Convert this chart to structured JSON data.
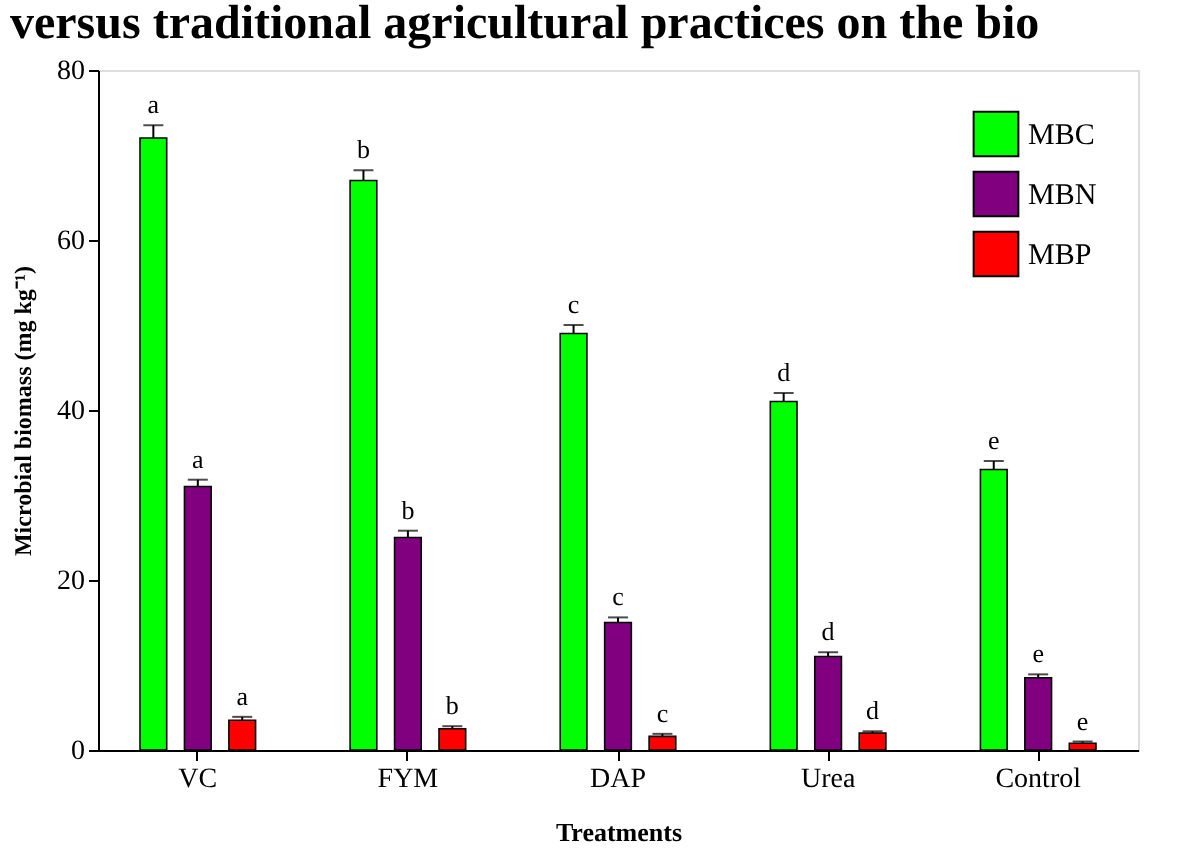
{
  "chart_data": {
    "type": "bar",
    "title": "versus traditional agricultural practices on the bio",
    "xlabel": "Treatments",
    "ylabel": "Microbial biomass (mg kg⁻¹)",
    "categories": [
      "VC",
      "FYM",
      "DAP",
      "Urea",
      "Control"
    ],
    "series": [
      {
        "name": "MBC",
        "color": "#00ff00",
        "values": [
          72,
          67,
          49,
          41,
          33
        ],
        "errors": [
          [
            72,
            73.5
          ],
          [
            67,
            68.2
          ],
          [
            49,
            50
          ],
          [
            41,
            42
          ],
          [
            33,
            34
          ]
        ],
        "value_labels": [
          "a",
          "b",
          "c",
          "d",
          "e"
        ]
      },
      {
        "name": "MBN",
        "color": "#800080",
        "values": [
          31,
          25,
          15,
          11,
          8.5
        ],
        "errors": [
          [
            31,
            31.8
          ],
          [
            25,
            25.8
          ],
          [
            15,
            15.6
          ],
          [
            11,
            11.5
          ],
          [
            8.5,
            8.9
          ]
        ],
        "value_labels": [
          "a",
          "b",
          "c",
          "d",
          "e"
        ]
      },
      {
        "name": "MBP",
        "color": "#ff0000",
        "values": [
          3.5,
          2.5,
          1.6,
          2.0,
          0.8
        ],
        "errors": [
          [
            3.5,
            3.9
          ],
          [
            2.5,
            2.8
          ],
          [
            1.6,
            1.9
          ],
          [
            2.0,
            2.2
          ],
          [
            0.8,
            1.0
          ]
        ],
        "value_labels": [
          "a",
          "b",
          "c",
          "d",
          "e"
        ]
      }
    ],
    "ylim": [
      0,
      80
    ],
    "yticks": [
      0,
      20,
      40,
      60,
      80
    ],
    "grid": false,
    "legend": "top right"
  }
}
